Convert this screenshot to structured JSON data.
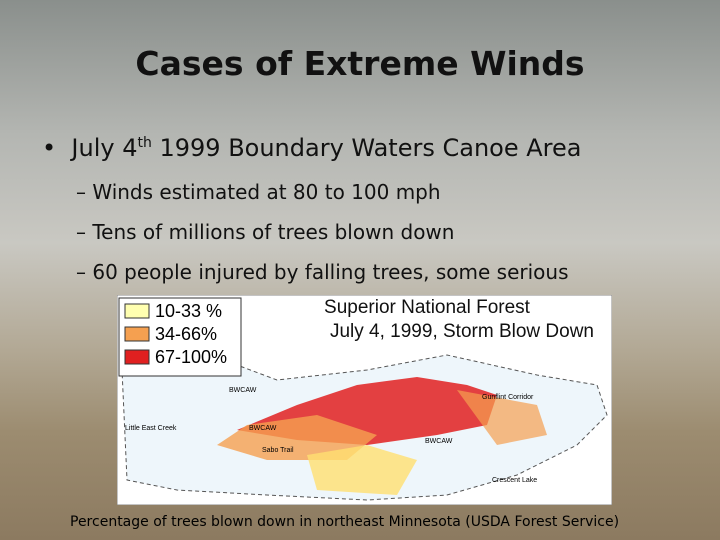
{
  "title": "Cases of Extreme Winds",
  "bullet": {
    "before": "July 4",
    "sup": "th",
    "after": " 1999 Boundary Waters Canoe Area"
  },
  "sub_bullets": [
    "Winds estimated at 80 to 100 mph",
    "Tens of millions of trees blown down",
    "60 people injured by falling trees, some serious"
  ],
  "map": {
    "title_lines": [
      "Superior National Forest",
      "July 4, 1999, Storm Blow Down"
    ],
    "legend": [
      "10-33 %",
      "34-66%",
      "67-100%"
    ],
    "places": [
      "BWCAW",
      "Little East Creek",
      "BWCAW",
      "Sabo Trail",
      "Gunflint Corridor",
      "BWCAW",
      "Crescent Lake"
    ]
  },
  "caption": "Percentage of trees blown down in northeast Minnesota (USDA Forest Service)"
}
